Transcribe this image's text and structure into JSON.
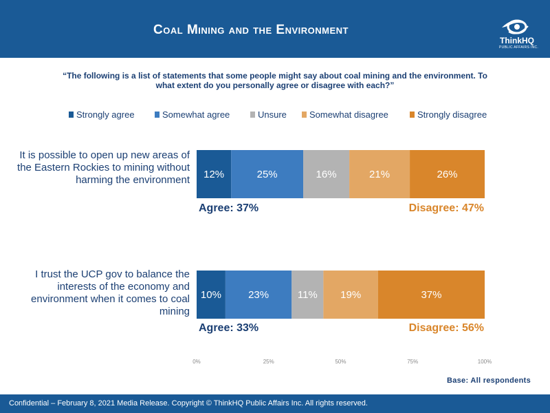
{
  "header": {
    "title": "Coal Mining and the Environment",
    "logo_name": "ThinkHQ",
    "logo_sub": "PUBLIC AFFAIRS INC."
  },
  "question": "“The following is a list of statements that some people might say about coal mining and the environment. To what extent do you personally agree or disagree with each?”",
  "colors": {
    "header_bg": "#1a5a96",
    "strongly_agree": "#1a5a96",
    "somewhat_agree": "#3d7cc0",
    "unsure": "#b3b3b3",
    "somewhat_disagree": "#e3a764",
    "strongly_disagree": "#d9862b"
  },
  "chart_data": {
    "type": "bar",
    "orientation": "horizontal",
    "stacked": true,
    "categories": [
      "It is possible to open up new areas of the Eastern Rockies to mining without harming the environment",
      "I trust the UCP gov to balance the interests of the economy and environment when it comes to coal mining"
    ],
    "series": [
      {
        "name": "Strongly agree",
        "values": [
          12,
          10
        ],
        "color": "#1a5a96"
      },
      {
        "name": "Somewhat agree",
        "values": [
          25,
          23
        ],
        "color": "#3d7cc0"
      },
      {
        "name": "Unsure",
        "values": [
          16,
          11
        ],
        "color": "#b3b3b3"
      },
      {
        "name": "Somewhat disagree",
        "values": [
          21,
          19
        ],
        "color": "#e3a764"
      },
      {
        "name": "Strongly disagree",
        "values": [
          26,
          37
        ],
        "color": "#d9862b"
      }
    ],
    "summaries": [
      {
        "agree": "Agree: 37%",
        "disagree": "Disagree: 47%"
      },
      {
        "agree": "Agree: 33%",
        "disagree": "Disagree: 56%"
      }
    ],
    "xlim": [
      0,
      100
    ],
    "x_ticks": [
      "0%",
      "25%",
      "50%",
      "75%",
      "100%"
    ],
    "legend_position": "top",
    "grid": false
  },
  "base_note": "Base: All respondents",
  "footer": "Confidential – February 8, 2021 Media Release. Copyright © ThinkHQ Public Affairs Inc. All rights reserved."
}
